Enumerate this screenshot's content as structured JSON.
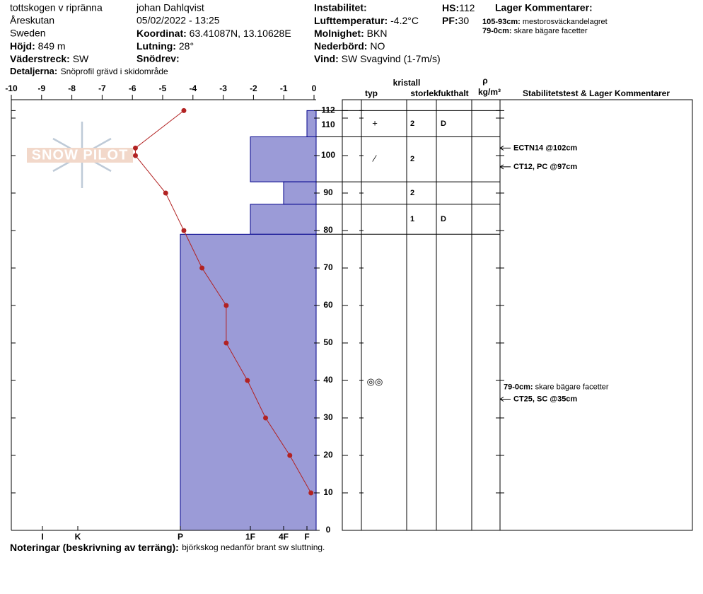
{
  "header": {
    "location": "tottskogen v ripränna",
    "region": "Åreskutan",
    "country": "Sweden",
    "elevation": {
      "label": "Höjd:",
      "value": "849 m"
    },
    "aspect": {
      "label": "Väderstreck:",
      "value": "SW"
    },
    "details": {
      "label": "Detaljerna:",
      "value": "Snöprofil grävd i skidområde"
    },
    "observer": "johan Dahlqvist",
    "datetime": "05/02/2022 - 13:25",
    "coordinates": {
      "label": "Koordinat:",
      "value": "63.41087N, 13.10628E"
    },
    "slope": {
      "label": "Lutning:",
      "value": "28°"
    },
    "wind_loading": "Snödrev:",
    "instability": "Instabilitet:",
    "air_temperature": {
      "label": "Lufttemperatur:",
      "value": "-4.2°C"
    },
    "sky": {
      "label": "Molnighet:",
      "value": "BKN"
    },
    "precipitation": {
      "label": "Nederbörd:",
      "value": "NO"
    },
    "wind": {
      "label": "Vind:",
      "value": "SW Svagvind (1-7m/s)"
    },
    "hs": {
      "label": "HS:",
      "value": "112"
    },
    "pf": {
      "label": "PF:",
      "value": "30"
    },
    "layer_comments_title": "Lager Kommentarer:",
    "layer_comments": [
      {
        "label": "105-93cm:",
        "value": "mestorosväckandelagret"
      },
      {
        "label": "79-0cm:",
        "value": "skare bägare facetter"
      }
    ]
  },
  "chart_data": {
    "type": "snowprofile",
    "logo": "SNOW PILOT",
    "xlim": [
      -10,
      0
    ],
    "xticks": [
      -10,
      -9,
      -8,
      -7,
      -6,
      -5,
      -4,
      -3,
      -2,
      -1,
      0
    ],
    "ylim": [
      0,
      112
    ],
    "yticks": [
      0,
      10,
      20,
      30,
      40,
      50,
      60,
      70,
      80,
      90,
      100,
      110,
      112
    ],
    "hardness_ticks": [
      "I",
      "K",
      "P",
      "1F",
      "4F",
      "F"
    ],
    "layer_color": "#9b9bd7",
    "temperature": {
      "color": "#b22222",
      "heights": [
        112,
        102,
        100,
        90,
        80,
        70,
        60,
        50,
        40,
        30,
        20,
        10
      ],
      "values": [
        -4.3,
        -5.9,
        -5.9,
        -4.9,
        -4.3,
        -3.7,
        -2.9,
        -2.9,
        -2.2,
        -1.6,
        -0.8,
        -0.1
      ]
    },
    "table_headers": {
      "type": "typ",
      "crystal": "kristall",
      "size": "storlek",
      "moisture": "fukthalt",
      "rho": "ρ",
      "density": "kg/m³",
      "comments": "Stabilitetstest & Lager Kommentarer"
    },
    "layers": [
      {
        "top": 112,
        "bottom": 105,
        "hardness": "F",
        "grain": "+",
        "size": 2,
        "moisture": "D"
      },
      {
        "top": 105,
        "bottom": 93,
        "hardness": "1F",
        "grain": "⁄",
        "size": 2
      },
      {
        "top": 93,
        "bottom": 87,
        "hardness": "4F",
        "size": 2
      },
      {
        "top": 87,
        "bottom": 79,
        "hardness": "1F",
        "size": 1,
        "moisture": "D"
      },
      {
        "top": 79,
        "bottom": 0,
        "hardness": "P",
        "grain": "◎◎",
        "comment": {
          "label": "79-0cm:",
          "value": "skare bägare facetter"
        }
      }
    ],
    "tests": [
      {
        "text": "ECTN14 @102cm",
        "height": 102
      },
      {
        "text": "CT12, PC @97cm",
        "height": 97
      },
      {
        "text": "CT25, SC @35cm",
        "height": 35
      }
    ]
  },
  "footer": {
    "label": "Noteringar (beskrivning av terräng):",
    "value": "björkskog nedanför brant sw sluttning."
  }
}
